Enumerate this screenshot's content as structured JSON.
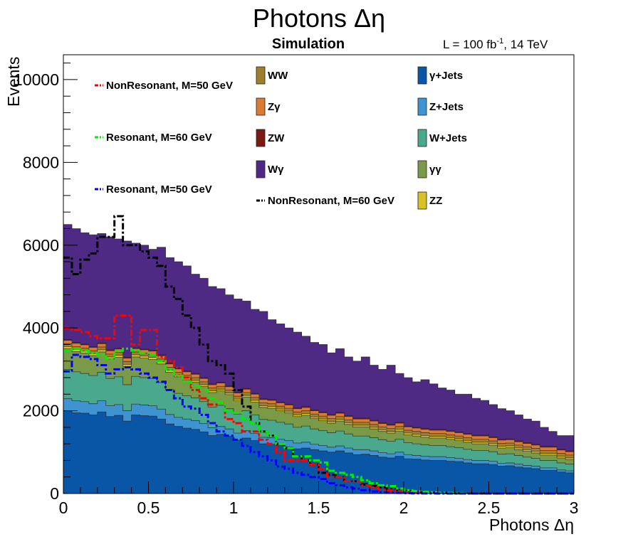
{
  "chart_data": {
    "type": "stacked-histogram",
    "title": "Photons Δη",
    "subtitle": "Simulation",
    "luminosity_label": "L = 100 fb",
    "luminosity_exponent": "-1",
    "luminosity_energy": ", 14 TeV",
    "xlabel": "Photons Δη",
    "ylabel": "Events",
    "xlim": [
      0,
      3
    ],
    "ylim": [
      0,
      10600
    ],
    "x_ticks": [
      0,
      0.5,
      1,
      1.5,
      2,
      2.5,
      3
    ],
    "x_tick_labels": [
      "0",
      "0.5",
      "1",
      "1.5",
      "2",
      "2.5",
      "3"
    ],
    "y_ticks": [
      0,
      2000,
      4000,
      6000,
      8000,
      10000
    ],
    "y_tick_labels": [
      "0",
      "2000",
      "4000",
      "6000",
      "8000",
      "10000"
    ],
    "bin_width": 0.05,
    "n_bins": 60,
    "stacked_totals": {
      "gamma_jets": [
        2000,
        1950,
        1940,
        1900,
        1970,
        1860,
        1890,
        1750,
        1900,
        1880,
        1870,
        1800,
        1680,
        1620,
        1580,
        1550,
        1490,
        1400,
        1430,
        1380,
        1290,
        1340,
        1280,
        1200,
        1190,
        1160,
        1130,
        1080,
        1100,
        1060,
        1030,
        1000,
        1030,
        980,
        940,
        950,
        920,
        880,
        860,
        900,
        840,
        830,
        810,
        800,
        800,
        780,
        770,
        740,
        720,
        720,
        700,
        660,
        670,
        640,
        620,
        600,
        560,
        560,
        520,
        500
      ],
      "z_jets": [
        2290,
        2240,
        2220,
        2170,
        2240,
        2120,
        2150,
        2000,
        2160,
        2140,
        2120,
        2040,
        1910,
        1840,
        1800,
        1760,
        1690,
        1590,
        1620,
        1560,
        1460,
        1520,
        1450,
        1360,
        1350,
        1310,
        1280,
        1220,
        1240,
        1190,
        1160,
        1120,
        1150,
        1100,
        1060,
        1060,
        1030,
        990,
        960,
        1000,
        940,
        920,
        900,
        890,
        890,
        870,
        850,
        820,
        800,
        800,
        780,
        730,
        740,
        710,
        680,
        660,
        620,
        620,
        570,
        550
      ],
      "w_jets": [
        3000,
        2940,
        2900,
        2850,
        2930,
        2780,
        2820,
        2630,
        2830,
        2800,
        2780,
        2680,
        2510,
        2420,
        2360,
        2310,
        2220,
        2090,
        2130,
        2050,
        1920,
        2000,
        1900,
        1790,
        1770,
        1720,
        1680,
        1600,
        1630,
        1560,
        1520,
        1470,
        1510,
        1440,
        1390,
        1390,
        1350,
        1300,
        1260,
        1310,
        1230,
        1200,
        1180,
        1160,
        1160,
        1130,
        1110,
        1070,
        1040,
        1040,
        1010,
        950,
        960,
        920,
        880,
        850,
        800,
        800,
        740,
        710
      ],
      "gammagamma": [
        3500,
        3430,
        3390,
        3330,
        3420,
        3250,
        3290,
        3070,
        3300,
        3270,
        3240,
        3130,
        2930,
        2820,
        2750,
        2690,
        2590,
        2440,
        2480,
        2390,
        2240,
        2330,
        2210,
        2080,
        2060,
        2000,
        1950,
        1860,
        1890,
        1810,
        1760,
        1700,
        1750,
        1670,
        1610,
        1610,
        1560,
        1500,
        1460,
        1510,
        1420,
        1390,
        1360,
        1340,
        1340,
        1310,
        1280,
        1240,
        1200,
        1200,
        1160,
        1100,
        1110,
        1060,
        1020,
        980,
        930,
        930,
        860,
        820
      ],
      "zz": [
        3550,
        3480,
        3440,
        3380,
        3470,
        3300,
        3340,
        3120,
        3350,
        3320,
        3290,
        3180,
        2980,
        2860,
        2790,
        2730,
        2630,
        2480,
        2520,
        2430,
        2280,
        2370,
        2250,
        2120,
        2100,
        2040,
        1990,
        1900,
        1930,
        1850,
        1800,
        1740,
        1790,
        1710,
        1650,
        1650,
        1600,
        1540,
        1500,
        1550,
        1460,
        1430,
        1400,
        1380,
        1380,
        1350,
        1320,
        1280,
        1240,
        1240,
        1200,
        1140,
        1150,
        1100,
        1060,
        1020,
        970,
        970,
        900,
        860
      ],
      "ww": [
        3620,
        3550,
        3510,
        3450,
        3540,
        3370,
        3410,
        3190,
        3420,
        3390,
        3360,
        3250,
        3050,
        2930,
        2860,
        2800,
        2700,
        2550,
        2590,
        2500,
        2350,
        2440,
        2320,
        2190,
        2170,
        2110,
        2060,
        1970,
        2000,
        1920,
        1870,
        1810,
        1860,
        1780,
        1720,
        1720,
        1670,
        1610,
        1570,
        1620,
        1530,
        1500,
        1470,
        1450,
        1450,
        1420,
        1390,
        1350,
        1310,
        1310,
        1270,
        1210,
        1220,
        1170,
        1130,
        1090,
        1040,
        1040,
        970,
        930
      ],
      "zgamma": [
        3700,
        3630,
        3590,
        3530,
        3620,
        3450,
        3490,
        3270,
        3500,
        3470,
        3440,
        3330,
        3130,
        3010,
        2940,
        2880,
        2780,
        2630,
        2670,
        2580,
        2430,
        2520,
        2400,
        2270,
        2250,
        2190,
        2140,
        2050,
        2080,
        2000,
        1950,
        1890,
        1940,
        1860,
        1800,
        1800,
        1750,
        1690,
        1650,
        1700,
        1610,
        1580,
        1550,
        1530,
        1530,
        1500,
        1470,
        1430,
        1390,
        1390,
        1350,
        1290,
        1300,
        1250,
        1210,
        1170,
        1120,
        1120,
        1050,
        1010
      ],
      "zw": [
        3720,
        3650,
        3610,
        3550,
        3640,
        3470,
        3510,
        3290,
        3520,
        3490,
        3460,
        3350,
        3150,
        3030,
        2960,
        2900,
        2800,
        2650,
        2690,
        2600,
        2450,
        2540,
        2420,
        2290,
        2270,
        2210,
        2160,
        2070,
        2100,
        2020,
        1970,
        1910,
        1960,
        1880,
        1820,
        1820,
        1770,
        1710,
        1670,
        1720,
        1630,
        1600,
        1570,
        1550,
        1550,
        1520,
        1490,
        1450,
        1410,
        1410,
        1370,
        1310,
        1320,
        1270,
        1230,
        1190,
        1140,
        1140,
        1070,
        1030
      ],
      "wgamma": [
        6500,
        6400,
        6300,
        6250,
        6280,
        6200,
        6150,
        6100,
        6050,
        6000,
        5900,
        5950,
        5700,
        5600,
        5500,
        5300,
        5200,
        5000,
        4950,
        4800,
        4700,
        4650,
        4450,
        4400,
        4200,
        4100,
        4000,
        3900,
        3800,
        3650,
        3600,
        3400,
        3500,
        3300,
        3200,
        3300,
        3100,
        3000,
        3100,
        2900,
        2800,
        2700,
        2750,
        2650,
        2550,
        2500,
        2400,
        2400,
        2300,
        2250,
        2150,
        2050,
        2000,
        1900,
        1800,
        1750,
        1600,
        1500,
        1400,
        1400
      ]
    },
    "series": [
      {
        "name": "WW",
        "label": "WW",
        "color": "#a07f2a",
        "style": "filled"
      },
      {
        "name": "Zgamma",
        "label": "Zγ",
        "color": "#d97b36",
        "style": "filled"
      },
      {
        "name": "ZW",
        "label": "ZW",
        "color": "#7a1a12",
        "style": "filled"
      },
      {
        "name": "Wgamma",
        "label": "Wγ",
        "color": "#4e2a84",
        "style": "filled"
      },
      {
        "name": "gamma_jets",
        "label": "γ+Jets",
        "color": "#0a56a6",
        "style": "filled"
      },
      {
        "name": "z_jets",
        "label": "Z+Jets",
        "color": "#3f93d0",
        "style": "filled"
      },
      {
        "name": "w_jets",
        "label": "W+Jets",
        "color": "#4aa88c",
        "style": "filled"
      },
      {
        "name": "gammagamma",
        "label": "γγ",
        "color": "#7a9a48",
        "style": "filled"
      },
      {
        "name": "ZZ",
        "label": "ZZ",
        "color": "#d8c224",
        "style": "filled"
      },
      {
        "name": "nonres_m50",
        "label": "NonResonant, M=50 GeV",
        "color": "#ff0000",
        "style": "dashed",
        "values": [
          4000,
          3950,
          3900,
          3800,
          3750,
          3750,
          4300,
          4300,
          3600,
          3950,
          3950,
          3300,
          3200,
          3050,
          2800,
          2500,
          2300,
          2150,
          2200,
          1800,
          1700,
          1500,
          1500,
          1300,
          1200,
          1000,
          800,
          800,
          800,
          700,
          600,
          400,
          400,
          300,
          300,
          200,
          150,
          100,
          80,
          60,
          40,
          30,
          20,
          20,
          15,
          10,
          5,
          5,
          3,
          2,
          0,
          0,
          0,
          0,
          0,
          0,
          0,
          0,
          0,
          0
        ]
      },
      {
        "name": "res_m60",
        "label": "Resonant, M=60 GeV",
        "color": "#00ee00",
        "style": "dashed",
        "values": [
          3450,
          3500,
          3450,
          3400,
          3350,
          3250,
          3450,
          3500,
          3450,
          3400,
          3350,
          3200,
          3000,
          2850,
          2700,
          2600,
          2500,
          2300,
          2200,
          2000,
          1950,
          1800,
          1700,
          1500,
          1400,
          1200,
          1100,
          900,
          900,
          800,
          750,
          550,
          500,
          450,
          400,
          320,
          250,
          200,
          180,
          120,
          80,
          60,
          40,
          30,
          20,
          15,
          10,
          5,
          3,
          2,
          0,
          0,
          0,
          0,
          0,
          0,
          0,
          0,
          0,
          0
        ]
      },
      {
        "name": "res_m50",
        "label": "Resonant, M=50 GeV",
        "color": "#0000ff",
        "style": "dashed",
        "values": [
          2950,
          3350,
          3300,
          3250,
          3100,
          2900,
          3000,
          3050,
          3000,
          2900,
          2800,
          2700,
          2500,
          2300,
          2100,
          2050,
          1900,
          1700,
          1500,
          1400,
          1300,
          1150,
          1000,
          900,
          800,
          650,
          600,
          500,
          450,
          400,
          350,
          250,
          200,
          150,
          120,
          80,
          50,
          30,
          20,
          15,
          10,
          5,
          3,
          2,
          0,
          0,
          0,
          0,
          0,
          0,
          0,
          0,
          0,
          0,
          0,
          0,
          0,
          0,
          0,
          0
        ]
      },
      {
        "name": "nonres_m60",
        "label": "NonResonant, M=60 GeV",
        "color": "#000000",
        "style": "dashed",
        "values": [
          5700,
          5300,
          5650,
          5800,
          6200,
          6200,
          6700,
          6000,
          6000,
          5850,
          5700,
          5500,
          5000,
          4700,
          4300,
          4000,
          3600,
          3200,
          3100,
          2900,
          2500,
          2100,
          1700,
          1500,
          1400,
          1200,
          1100,
          900,
          800,
          700,
          500,
          450,
          400,
          300,
          300,
          220,
          180,
          150,
          100,
          80,
          60,
          40,
          30,
          20,
          15,
          10,
          5,
          5,
          3,
          2,
          0,
          0,
          0,
          0,
          0,
          0,
          0,
          0,
          0,
          0
        ]
      }
    ],
    "legend": [
      {
        "name": "nonres_m50",
        "column": 0,
        "row": 0
      },
      {
        "name": "res_m60",
        "column": 0,
        "row": 2
      },
      {
        "name": "res_m50",
        "column": 0,
        "row": 4
      },
      {
        "name": "WW",
        "column": 1,
        "row": 0
      },
      {
        "name": "Zgamma",
        "column": 1,
        "row": 1
      },
      {
        "name": "ZW",
        "column": 1,
        "row": 2
      },
      {
        "name": "Wgamma",
        "column": 1,
        "row": 3
      },
      {
        "name": "nonres_m60",
        "column": 1,
        "row": 4
      },
      {
        "name": "gamma_jets",
        "column": 2,
        "row": 0
      },
      {
        "name": "z_jets",
        "column": 2,
        "row": 1
      },
      {
        "name": "w_jets",
        "column": 2,
        "row": 2
      },
      {
        "name": "gammagamma",
        "column": 2,
        "row": 3
      },
      {
        "name": "ZZ",
        "column": 2,
        "row": 4
      }
    ],
    "legend_placement": "top"
  }
}
